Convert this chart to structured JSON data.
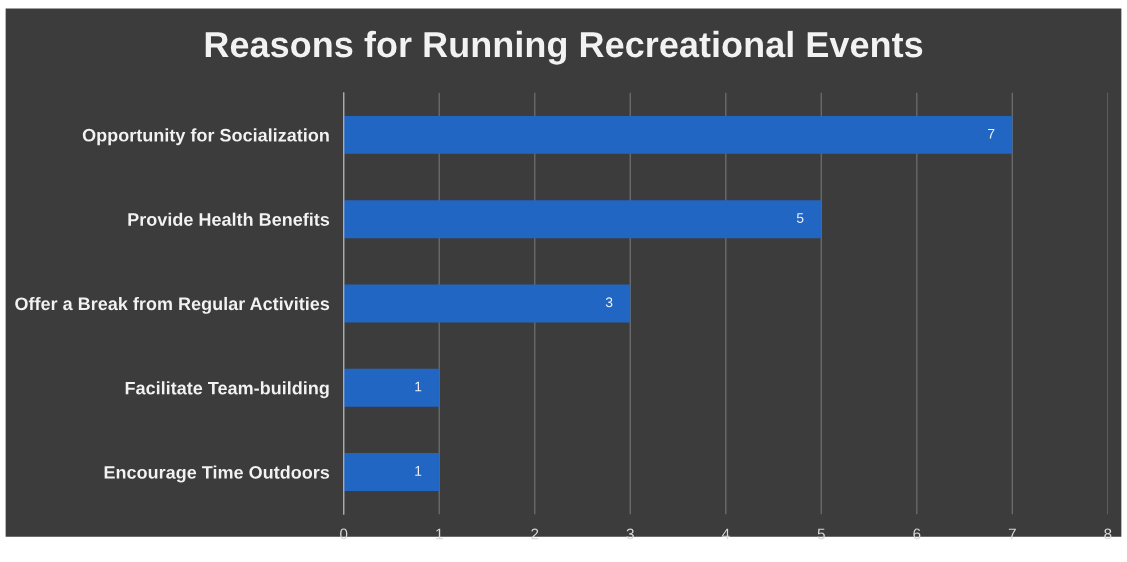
{
  "chart_data": {
    "type": "bar",
    "orientation": "horizontal",
    "title": "Reasons for Running Recreational Events",
    "categories": [
      "Opportunity for Socialization",
      "Provide Health Benefits",
      "Offer a Break from Regular Activities",
      "Facilitate Team-building",
      "Encourage Time Outdoors"
    ],
    "values": [
      7,
      5,
      3,
      1,
      1
    ],
    "color": "#2266c4",
    "xlim": [
      0,
      8
    ],
    "xticks": [
      0,
      1,
      2,
      3,
      4,
      5,
      6,
      7,
      8
    ],
    "grid": "x",
    "data_labels": true
  }
}
